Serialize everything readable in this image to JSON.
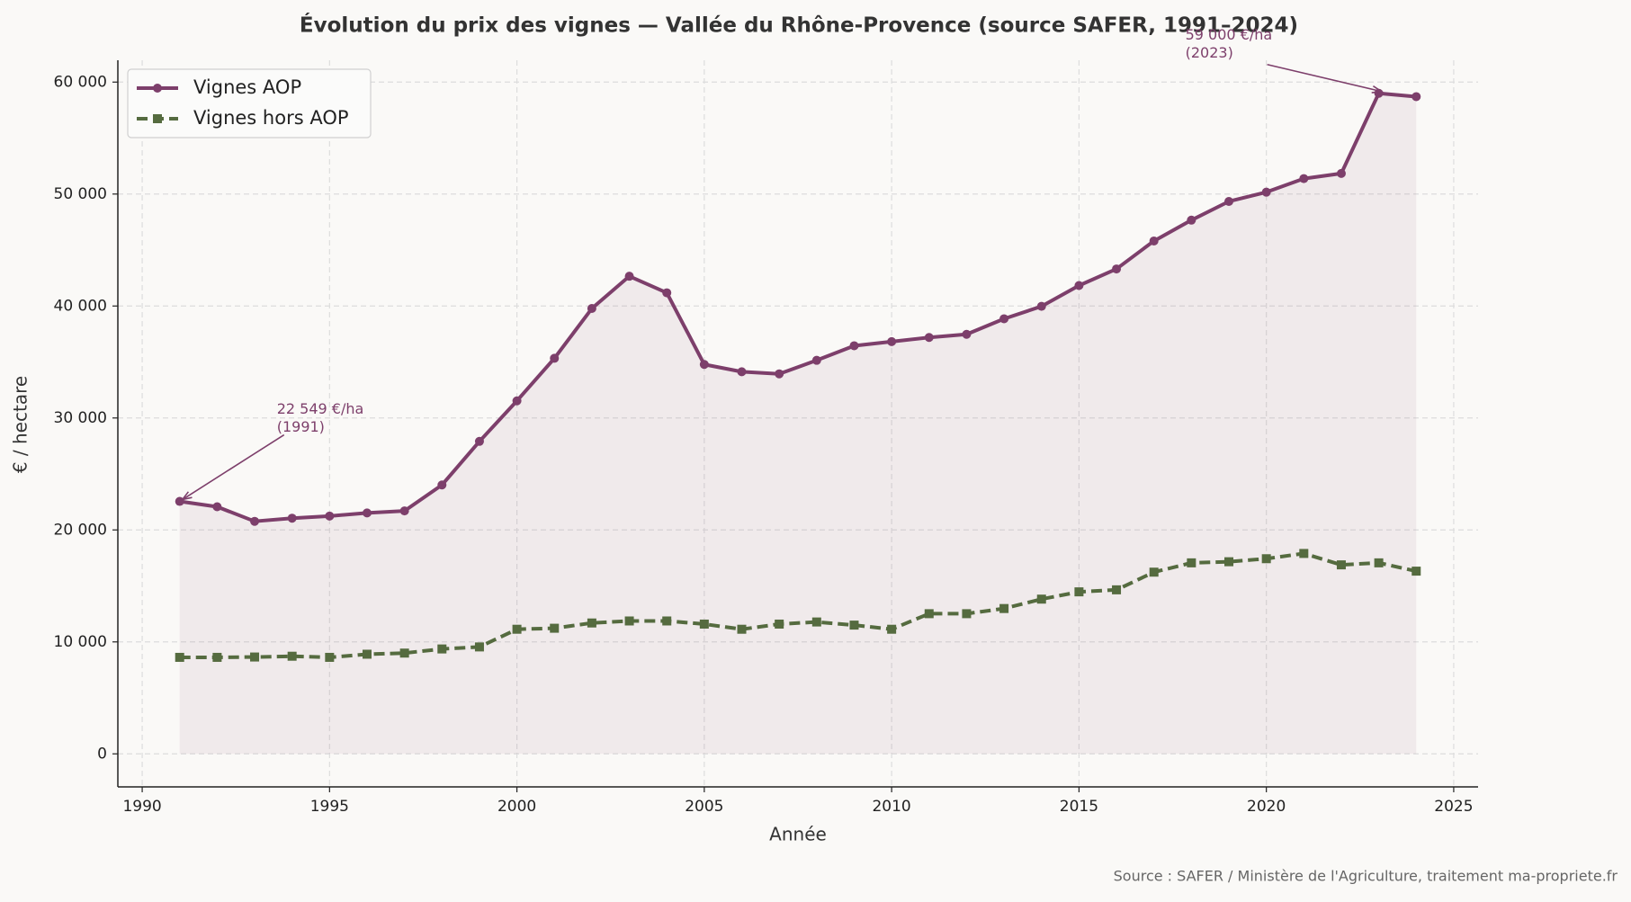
{
  "chart_data": {
    "type": "line",
    "title": "Évolution du prix des vignes — Vallée du Rhône-Provence (source SAFER, 1991–2024)",
    "x_label": "Année",
    "y_label": "€ / hectare",
    "source": "Source : SAFER / Ministère de l'Agriculture, traitement ma-propriete.fr",
    "x": [
      1991,
      1992,
      1993,
      1994,
      1995,
      1996,
      1997,
      1998,
      1999,
      2000,
      2001,
      2002,
      2003,
      2004,
      2005,
      2006,
      2007,
      2008,
      2009,
      2010,
      2011,
      2012,
      2013,
      2014,
      2015,
      2016,
      2017,
      2018,
      2019,
      2020,
      2021,
      2022,
      2023,
      2024
    ],
    "series": [
      {
        "name": "Vignes AOP",
        "color": "#7d3f6b",
        "marker": "circle",
        "dash": "solid",
        "fill": true,
        "values": [
          22549,
          22070,
          20770,
          21050,
          21240,
          21520,
          21700,
          24020,
          27910,
          31530,
          35330,
          39780,
          42660,
          41180,
          34780,
          34130,
          33940,
          35150,
          36450,
          36820,
          37190,
          37470,
          38860,
          39970,
          41830,
          43310,
          45810,
          47670,
          49340,
          50170,
          51380,
          51840,
          59000,
          58700
        ]
      },
      {
        "name": "Vignes hors AOP",
        "color": "#556b3f",
        "marker": "square",
        "dash": "dashed",
        "fill": false,
        "values": [
          8620,
          8620,
          8650,
          8720,
          8620,
          8900,
          9000,
          9370,
          9550,
          11130,
          11220,
          11690,
          11870,
          11870,
          11590,
          11130,
          11590,
          11780,
          11500,
          11130,
          12520,
          12520,
          12980,
          13820,
          14470,
          14650,
          16230,
          17060,
          17160,
          17430,
          17900,
          16880,
          17060,
          16320
        ]
      }
    ],
    "xlim": [
      1989.35,
      2025.65
    ],
    "xticks": [
      1990,
      1995,
      2000,
      2005,
      2010,
      2015,
      2020,
      2025
    ],
    "ylim": [
      -2950,
      61950
    ],
    "yticks": [
      0,
      {
        "value": 10000,
        "label": "10 000"
      },
      {
        "value": 20000,
        "label": "20 000"
      },
      {
        "value": 30000,
        "label": "30 000"
      },
      {
        "value": 40000,
        "label": "40 000"
      },
      {
        "value": 50000,
        "label": "50 000"
      },
      {
        "value": 60000,
        "label": "60 000"
      }
    ],
    "grid": true,
    "legend": "upper left",
    "annotations": [
      {
        "lines": [
          "22 549 €/ha",
          "(1991)"
        ],
        "x": 1991,
        "y": 22549
      },
      {
        "lines": [
          "59 000 €/ha",
          "(2023)"
        ],
        "x": 2023,
        "y": 59000
      }
    ]
  }
}
